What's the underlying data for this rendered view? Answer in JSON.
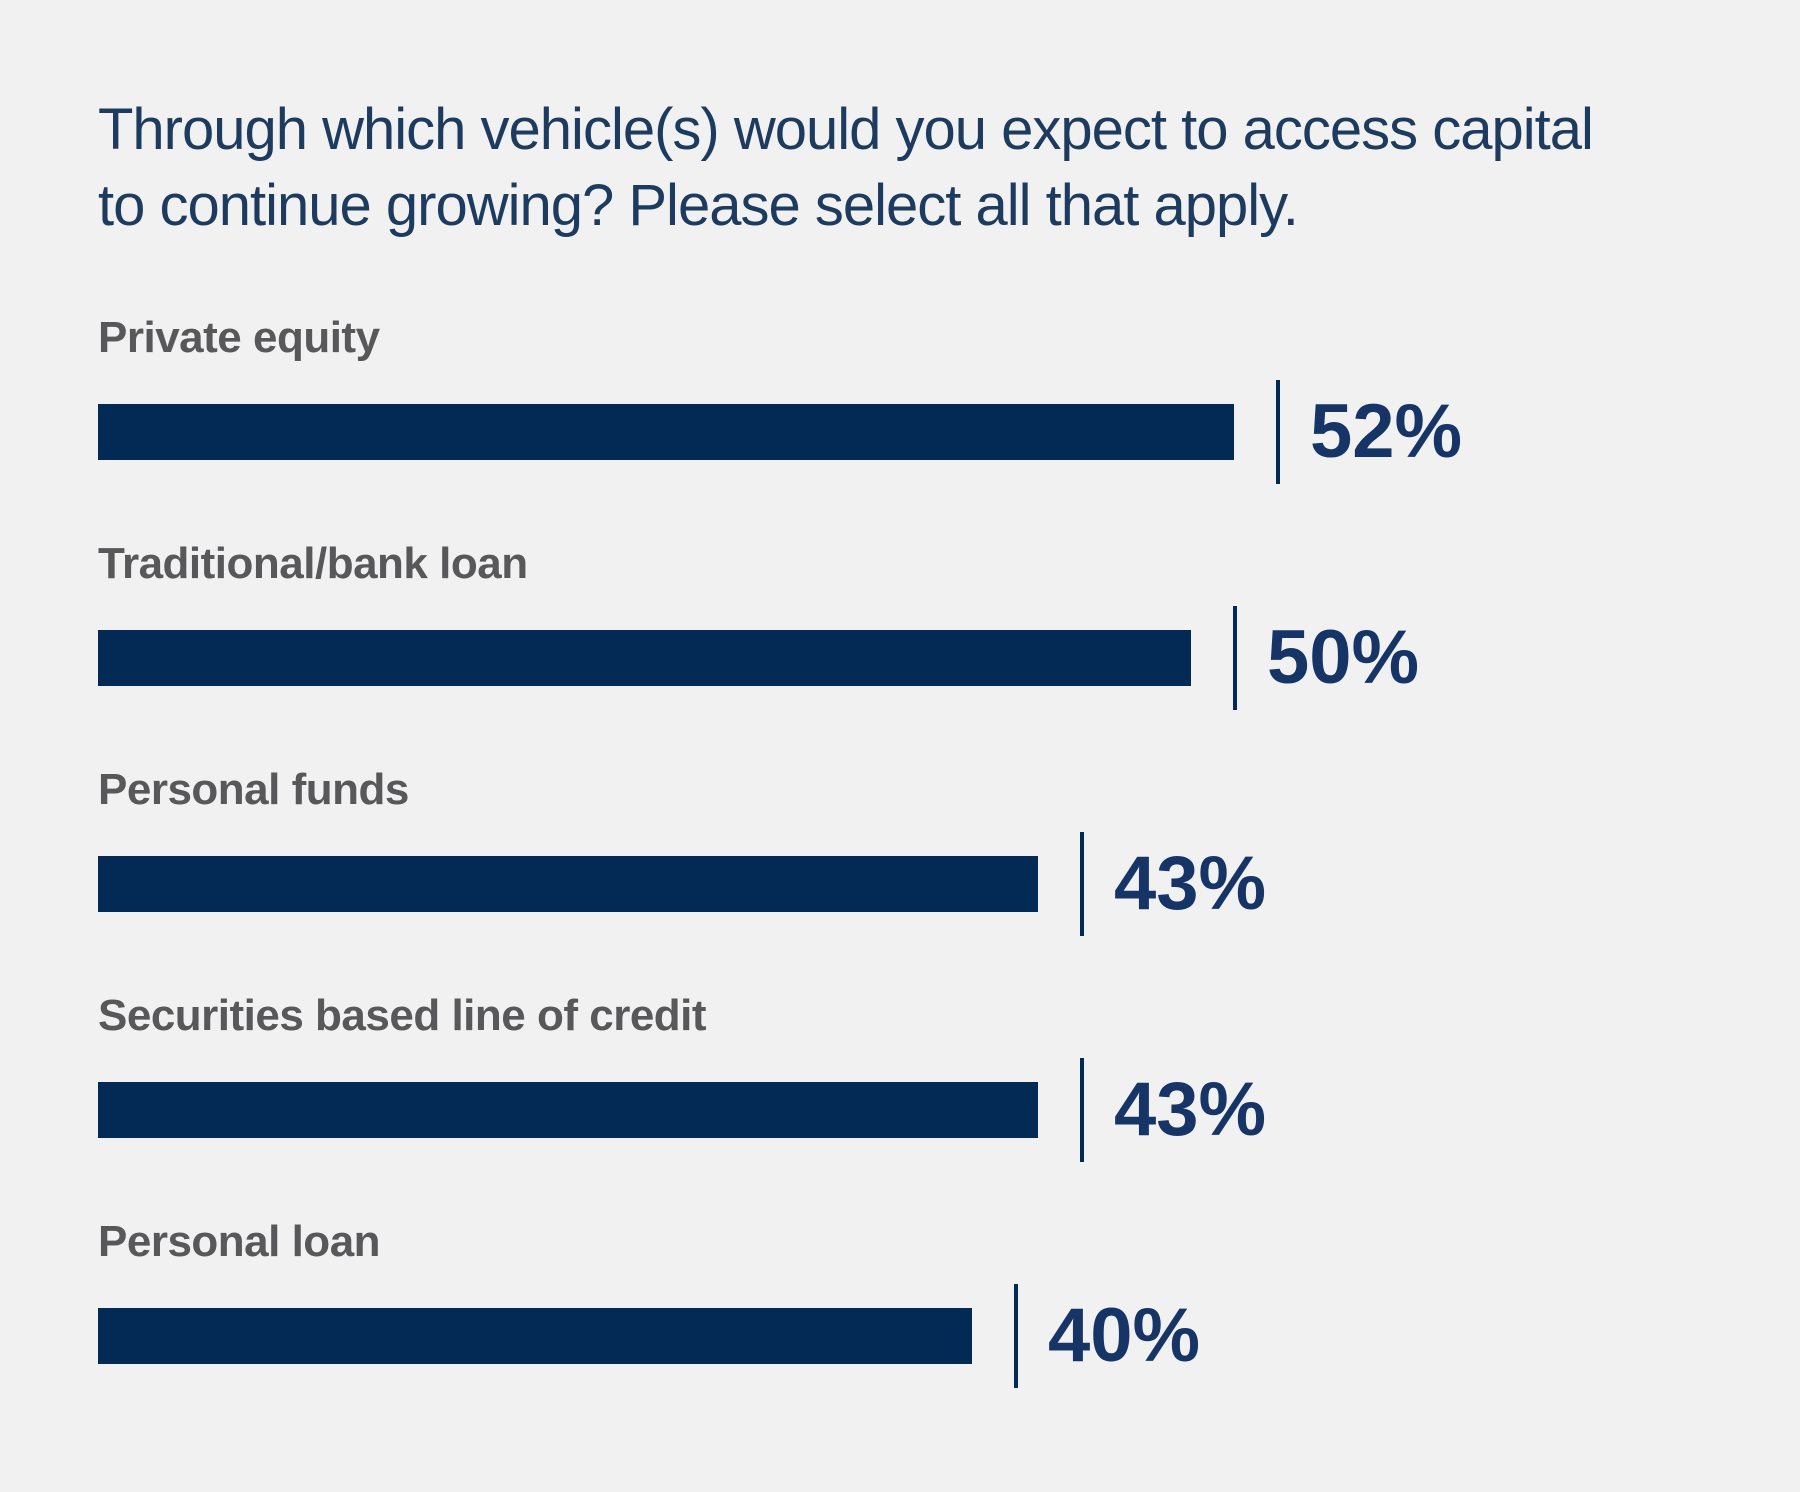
{
  "page": {
    "background_color": "#f1f1f2"
  },
  "chart_data": {
    "type": "bar",
    "orientation": "horizontal",
    "title": "Through which vehicle(s) would you expect to access capital to continue growing? Please select all that apply.",
    "title_lines": [
      "Through which vehicle(s) would you expect to access capital",
      "to continue growing? Please select all that apply."
    ],
    "categories": [
      "Private equity",
      "Traditional/bank loan",
      "Personal funds",
      "Securities based line of credit",
      "Personal loan"
    ],
    "values": [
      52,
      50,
      43,
      43,
      40
    ],
    "value_labels": [
      "52%",
      "50%",
      "43%",
      "43%",
      "40%"
    ],
    "xlabel": "",
    "ylabel": "",
    "xlim": [
      0,
      52
    ],
    "grid": false,
    "legend": false,
    "bar_color": "#032a54",
    "tick_color": "#032a54",
    "category_label_color": "#58585a",
    "value_label_color": "#163466",
    "title_color": "#1d3b5e"
  }
}
